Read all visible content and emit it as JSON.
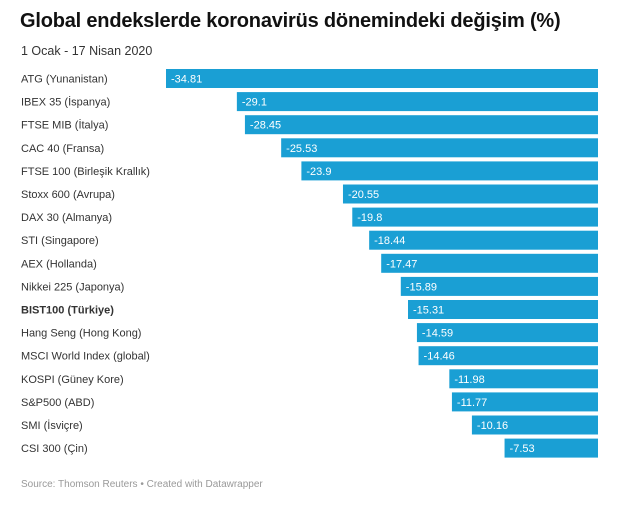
{
  "chart_data": {
    "type": "bar",
    "orientation": "horizontal",
    "title": "Global endekslerde koronavirüs dönemindeki değişim (%)",
    "subtitle": "1 Ocak - 17 Nisan 2020",
    "source": "Source: Thomson Reuters • Created with Datawrapper",
    "xlim": [
      -34.81,
      0
    ],
    "bar_color": "#1a9fd4",
    "highlight_category": "BIST100 (Türkiye)",
    "categories": [
      "ATG (Yunanistan)",
      "IBEX 35 (İspanya)",
      "FTSE MIB (İtalya)",
      "CAC 40 (Fransa)",
      "FTSE 100 (Birleşik Krallık)",
      "Stoxx 600 (Avrupa)",
      "DAX 30 (Almanya)",
      "STI (Singapore)",
      "AEX (Hollanda)",
      "Nikkei 225 (Japonya)",
      "BIST100 (Türkiye)",
      "Hang Seng (Hong Kong)",
      "MSCI World Index (global)",
      "KOSPI (Güney Kore)",
      "S&P500 (ABD)",
      "SMI (İsviçre)",
      "CSI 300 (Çin)"
    ],
    "values": [
      -34.81,
      -29.1,
      -28.45,
      -25.53,
      -23.9,
      -20.55,
      -19.8,
      -18.44,
      -17.47,
      -15.89,
      -15.31,
      -14.59,
      -14.46,
      -11.98,
      -11.77,
      -10.16,
      -7.53
    ],
    "value_labels": [
      "-34.81",
      "-29.1",
      "-28.45",
      "-25.53",
      "-23.9",
      "-20.55",
      "-19.8",
      "-18.44",
      "-17.47",
      "-15.89",
      "-15.31",
      "-14.59",
      "-14.46",
      "-11.98",
      "-11.77",
      "-10.16",
      "-7.53"
    ]
  }
}
